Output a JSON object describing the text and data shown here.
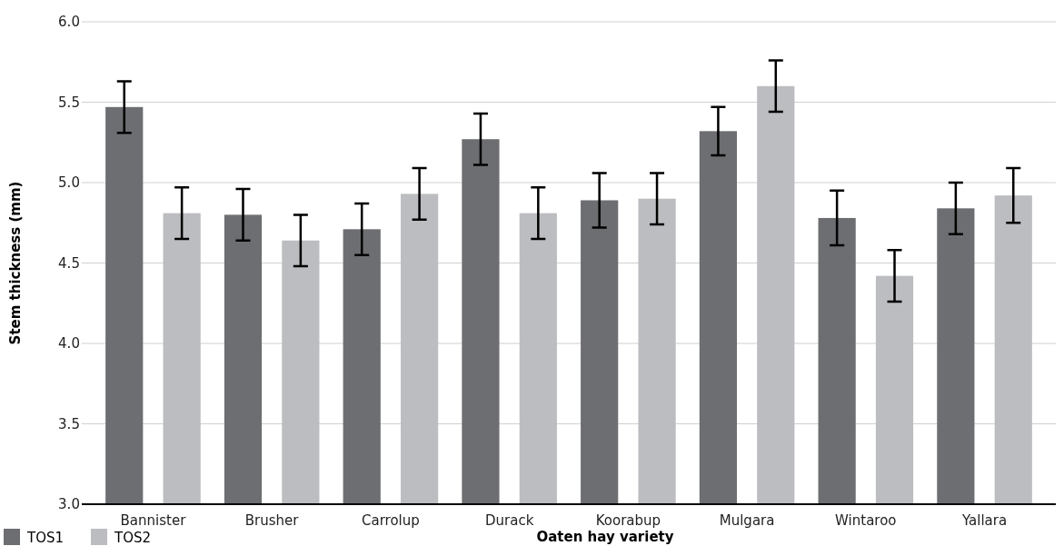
{
  "chart_data": {
    "type": "bar",
    "xlabel": "Oaten hay variety",
    "ylabel": "Stem thickness (mm)",
    "categories": [
      "Bannister",
      "Brusher",
      "Carrolup",
      "Durack",
      "Koorabup",
      "Mulgara",
      "Wintaroo",
      "Yallara"
    ],
    "series": [
      {
        "name": "TOS1",
        "color": "#6d6e71",
        "values": [
          5.47,
          4.8,
          4.71,
          5.27,
          4.89,
          5.32,
          4.78,
          4.84
        ],
        "errors": [
          0.16,
          0.16,
          0.16,
          0.16,
          0.17,
          0.15,
          0.17,
          0.16
        ]
      },
      {
        "name": "TOS2",
        "color": "#bcbdc0",
        "values": [
          4.81,
          4.64,
          4.93,
          4.81,
          4.9,
          5.6,
          4.42,
          4.92
        ],
        "errors": [
          0.16,
          0.16,
          0.16,
          0.16,
          0.16,
          0.16,
          0.16,
          0.17
        ]
      }
    ],
    "ylim": [
      3,
      6
    ],
    "yticks": [
      {
        "value": 3,
        "label": "3.0"
      },
      {
        "value": 3.5,
        "label": "3.5"
      },
      {
        "value": 4,
        "label": "4.0"
      },
      {
        "value": 4.5,
        "label": "4.5"
      },
      {
        "value": 5,
        "label": "5.0"
      },
      {
        "value": 5.5,
        "label": "5.5"
      },
      {
        "value": 6,
        "label": "6.0"
      }
    ],
    "grid": "y",
    "legend": "bottom left"
  }
}
